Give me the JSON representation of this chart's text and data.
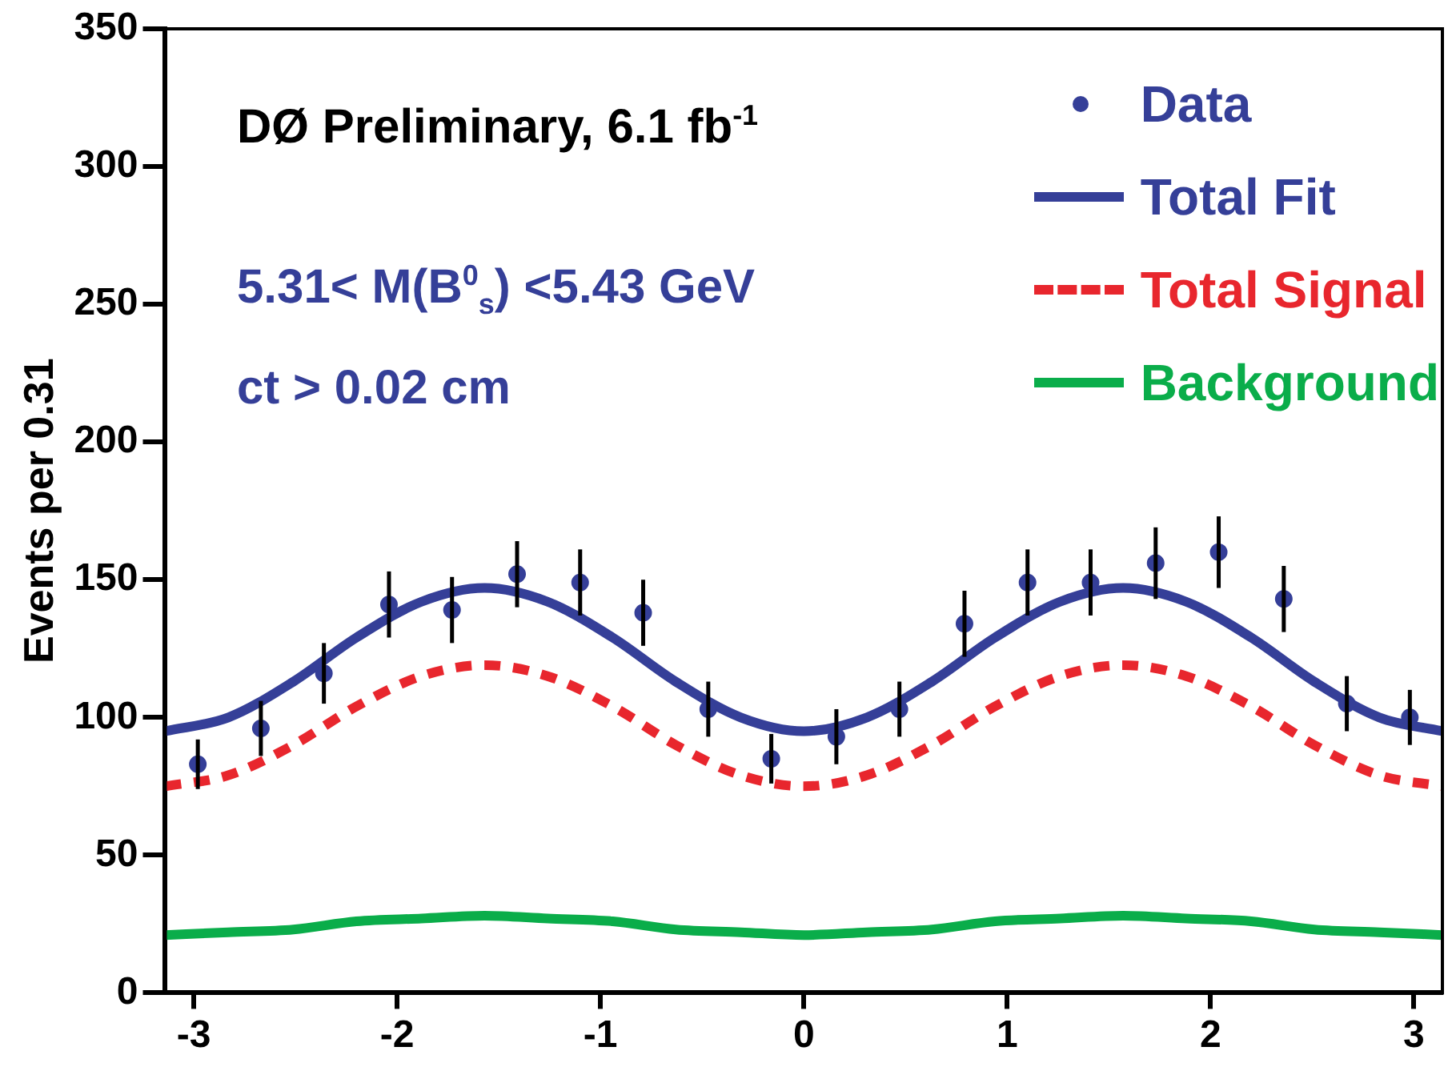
{
  "chart_data": {
    "type": "scatter",
    "ylabel": "Events per 0.31",
    "xlim": [
      -3.14,
      3.14
    ],
    "ylim": [
      0,
      350
    ],
    "xticks": [
      -3,
      -2,
      -1,
      0,
      1,
      2,
      3
    ],
    "yticks": [
      0,
      50,
      100,
      150,
      200,
      250,
      300,
      350
    ],
    "grid": false,
    "legend": "top right",
    "annotations": [
      "DØ Preliminary, 6.1 fb$^{-1}$",
      "5.31< M(B$^{0}$$_{s}$) <5.43 GeV",
      "ct > 0.02 cm"
    ],
    "series": [
      {
        "name": "Data",
        "marker": "circle",
        "color": "#353f98",
        "x": [
          -2.98,
          -2.67,
          -2.36,
          -2.04,
          -1.73,
          -1.41,
          -1.1,
          -0.79,
          -0.47,
          -0.16,
          0.16,
          0.47,
          0.79,
          1.1,
          1.41,
          1.73,
          2.04,
          2.36,
          2.67,
          2.98
        ],
        "values": [
          83,
          96,
          116,
          141,
          139,
          152,
          149,
          138,
          103,
          85,
          93,
          103,
          134,
          149,
          149,
          156,
          160,
          143,
          105,
          100
        ],
        "errors": [
          9,
          10,
          11,
          12,
          12,
          12,
          12,
          12,
          10,
          9,
          10,
          10,
          12,
          12,
          12,
          13,
          13,
          12,
          10,
          10
        ]
      },
      {
        "name": "Total Fit",
        "type": "line",
        "line_style": "solid",
        "marker": "none",
        "color": "#353f98",
        "x": [
          -3.14,
          -2.83,
          -2.51,
          -2.2,
          -1.88,
          -1.57,
          -1.26,
          -0.94,
          -0.63,
          -0.31,
          0,
          0.31,
          0.63,
          0.94,
          1.26,
          1.57,
          1.88,
          2.2,
          2.51,
          2.83,
          3.14
        ],
        "values": [
          95,
          100,
          113,
          129,
          142,
          147,
          142,
          129,
          113,
          100,
          95,
          100,
          113,
          129,
          142,
          147,
          142,
          129,
          113,
          100,
          95
        ]
      },
      {
        "name": "Total Signal",
        "type": "line",
        "line_style": "dashed",
        "marker": "none",
        "color": "#e8262d",
        "x": [
          -3.14,
          -2.83,
          -2.51,
          -2.2,
          -1.88,
          -1.57,
          -1.26,
          -0.94,
          -0.63,
          -0.31,
          0,
          0.31,
          0.63,
          0.94,
          1.26,
          1.57,
          1.88,
          2.2,
          2.51,
          2.83,
          3.14
        ],
        "values": [
          75,
          79,
          90,
          104,
          115,
          119,
          115,
          104,
          90,
          79,
          75,
          79,
          90,
          104,
          115,
          119,
          115,
          104,
          90,
          79,
          75
        ]
      },
      {
        "name": "Background",
        "type": "line",
        "line_style": "solid",
        "marker": "none",
        "color": "#0aad4a",
        "x": [
          -3.14,
          -2.83,
          -2.51,
          -2.2,
          -1.88,
          -1.57,
          -1.26,
          -0.94,
          -0.63,
          -0.31,
          0,
          0.31,
          0.63,
          0.94,
          1.26,
          1.57,
          1.88,
          2.2,
          2.51,
          2.83,
          3.14
        ],
        "values": [
          21,
          22,
          23,
          26,
          27,
          28,
          27,
          26,
          23,
          22,
          21,
          22,
          23,
          26,
          27,
          28,
          27,
          26,
          23,
          22,
          21
        ]
      }
    ]
  }
}
